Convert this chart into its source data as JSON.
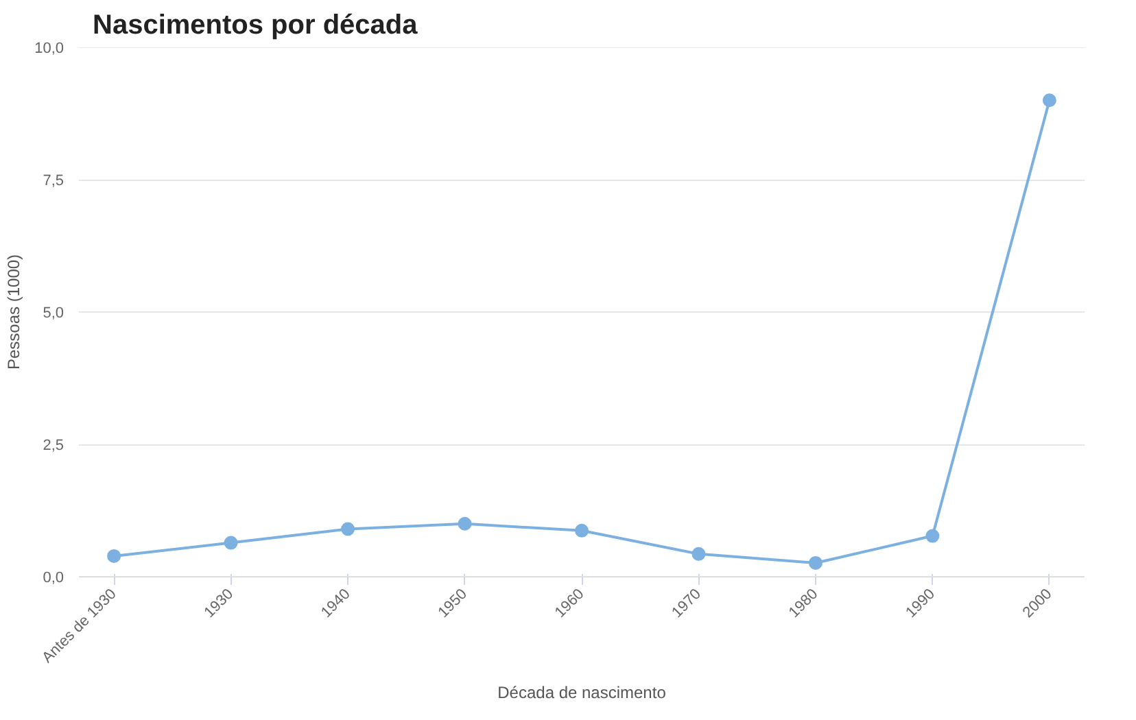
{
  "chart_data": {
    "type": "line",
    "title": "Nascimentos por década",
    "xlabel": "Década de nascimento",
    "ylabel": "Pessoas (1000)",
    "categories": [
      "Antes de 1930",
      "1930",
      "1940",
      "1950",
      "1960",
      "1970",
      "1980",
      "1990",
      "2000"
    ],
    "series": [
      {
        "color": "#7cb0e0",
        "values": [
          0.39,
          0.64,
          0.9,
          1.0,
          0.87,
          0.43,
          0.26,
          0.77,
          9.0
        ]
      }
    ],
    "ylim": [
      0,
      10
    ],
    "yticks": [
      {
        "value": 0,
        "label": "0,0"
      },
      {
        "value": 2.5,
        "label": "2,5"
      },
      {
        "value": 5,
        "label": "5,0"
      },
      {
        "value": 7.5,
        "label": "7,5"
      },
      {
        "value": 10,
        "label": "10,0"
      }
    ],
    "grid": "y",
    "marker": "circle"
  }
}
